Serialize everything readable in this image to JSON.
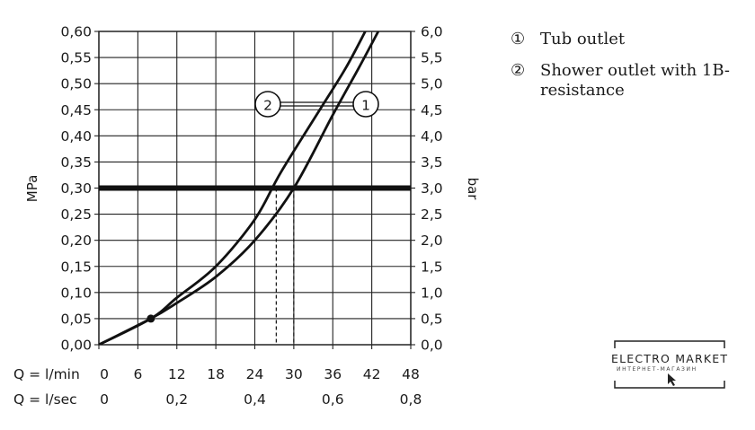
{
  "chart_data": {
    "type": "line",
    "ylabel_left": "MPa",
    "ylabel_right": "bar",
    "ylim": [
      0,
      0.6
    ],
    "y_right_lim": [
      0,
      6.0
    ],
    "y_ticks_left": [
      "0,00",
      "0,05",
      "0,10",
      "0,15",
      "0,20",
      "0,25",
      "0,30",
      "0,35",
      "0,40",
      "0,45",
      "0,50",
      "0,55",
      "0,60"
    ],
    "y_ticks_right": [
      "0,0",
      "0,5",
      "1,0",
      "1,5",
      "2,0",
      "2,5",
      "3,0",
      "3,5",
      "4,0",
      "4,5",
      "5,0",
      "5,5",
      "6,0"
    ],
    "x_row1_label": "Q = l/min",
    "x_row1_ticks": [
      "0",
      "6",
      "12",
      "18",
      "24",
      "30",
      "36",
      "42",
      "48"
    ],
    "x_row2_label": "Q = l/sec",
    "x_row2_ticks": [
      "0",
      "0,2",
      "0,4",
      "0,6",
      "0,8"
    ],
    "xlim": [
      0,
      48
    ],
    "grid": true,
    "reference_line": {
      "y": 0.3
    },
    "series": [
      {
        "marker": "1",
        "x": [
          0,
          8,
          12,
          18,
          24,
          30,
          36,
          40,
          43
        ],
        "y": [
          0,
          0.05,
          0.08,
          0.13,
          0.2,
          0.3,
          0.44,
          0.53,
          0.6
        ]
      },
      {
        "marker": "2",
        "x": [
          0,
          8,
          12,
          18,
          24,
          28,
          34,
          38,
          41
        ],
        "y": [
          0,
          0.05,
          0.09,
          0.15,
          0.24,
          0.33,
          0.45,
          0.53,
          0.6
        ]
      }
    ],
    "crossing_x": [
      27.3,
      30.0
    ],
    "highlight_point": {
      "x": 8.0,
      "y": 0.05
    },
    "callouts": [
      "2",
      "1"
    ]
  },
  "legend": [
    {
      "marker": "①",
      "text": "Tub outlet"
    },
    {
      "marker": "②",
      "text": "Shower outlet with 1B-resistance"
    }
  ],
  "logo": {
    "line1": "ELECTRO MARKET",
    "line2": "ИНТЕРНЕТ-МАГАЗИН"
  }
}
